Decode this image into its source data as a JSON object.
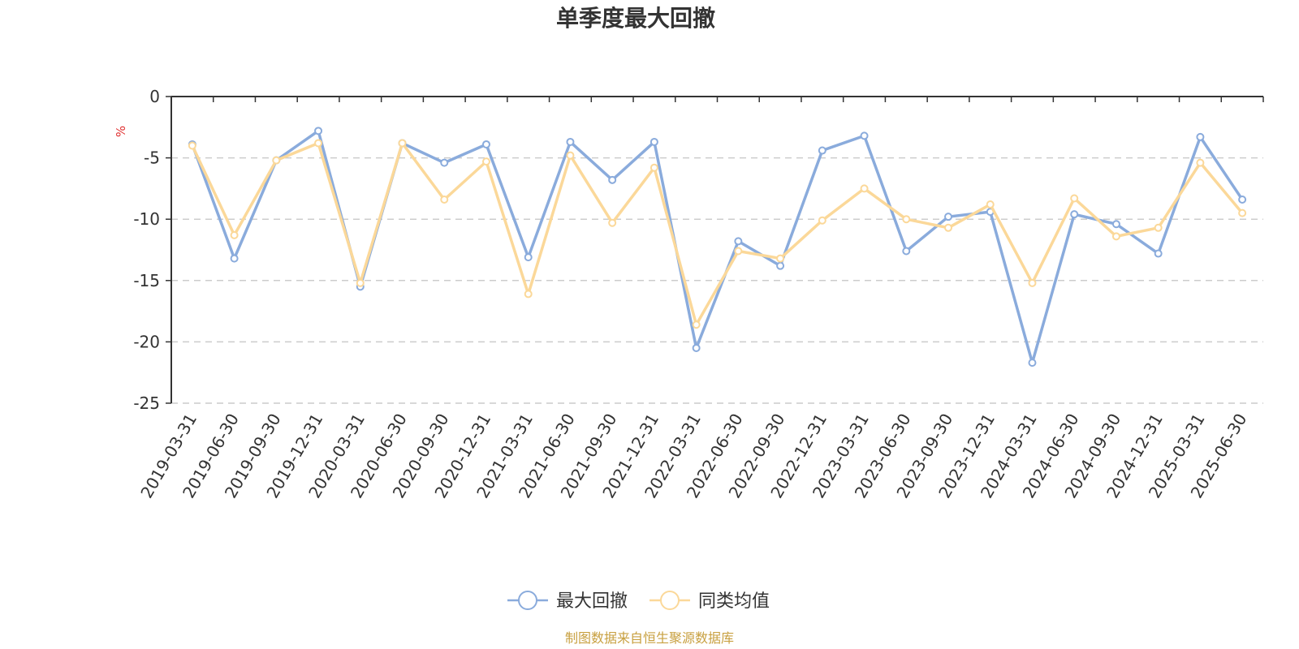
{
  "chart_data": {
    "type": "line",
    "title": "单季度最大回撤",
    "ylabel": "%",
    "ylim": [
      -25,
      0
    ],
    "yticks": [
      0,
      -5,
      -10,
      -15,
      -20,
      -25
    ],
    "grid": "horizontal-dashed",
    "legend_position": "bottom-center",
    "categories": [
      "2019-03-31",
      "2019-06-30",
      "2019-09-30",
      "2019-12-31",
      "2020-03-31",
      "2020-06-30",
      "2020-09-30",
      "2020-12-31",
      "2021-03-31",
      "2021-06-30",
      "2021-09-30",
      "2021-12-31",
      "2022-03-31",
      "2022-06-30",
      "2022-09-30",
      "2022-12-31",
      "2023-03-31",
      "2023-06-30",
      "2023-09-30",
      "2023-12-31",
      "2024-03-31",
      "2024-06-30",
      "2024-09-30",
      "2024-12-31",
      "2025-03-31",
      "2025-06-30"
    ],
    "series": [
      {
        "name": "最大回撤",
        "color": "#8aabdc",
        "values": [
          -3.9,
          -13.2,
          -5.2,
          -2.8,
          -15.5,
          -3.8,
          -5.4,
          -3.9,
          -13.1,
          -3.7,
          -6.8,
          -3.7,
          -20.5,
          -11.8,
          -13.8,
          -4.4,
          -3.2,
          -12.6,
          -9.8,
          -9.4,
          -21.7,
          -9.6,
          -10.4,
          -12.8,
          -3.3,
          -8.4
        ]
      },
      {
        "name": "同类均值",
        "color": "#fbd899",
        "values": [
          -4.0,
          -11.3,
          -5.2,
          -3.8,
          -15.2,
          -3.8,
          -8.4,
          -5.3,
          -16.1,
          -4.8,
          -10.3,
          -5.8,
          -18.6,
          -12.6,
          -13.2,
          -10.1,
          -7.5,
          -10.0,
          -10.7,
          -8.8,
          -15.2,
          -8.3,
          -11.4,
          -10.7,
          -5.4,
          -9.5
        ]
      }
    ]
  },
  "source_note": "制图数据来自恒生聚源数据库",
  "colors": {
    "axis": "#333333",
    "grid": "#cccccc",
    "unit_label": "#e03030",
    "source_note": "#c8a040",
    "marker_fill": "#ffffff"
  }
}
